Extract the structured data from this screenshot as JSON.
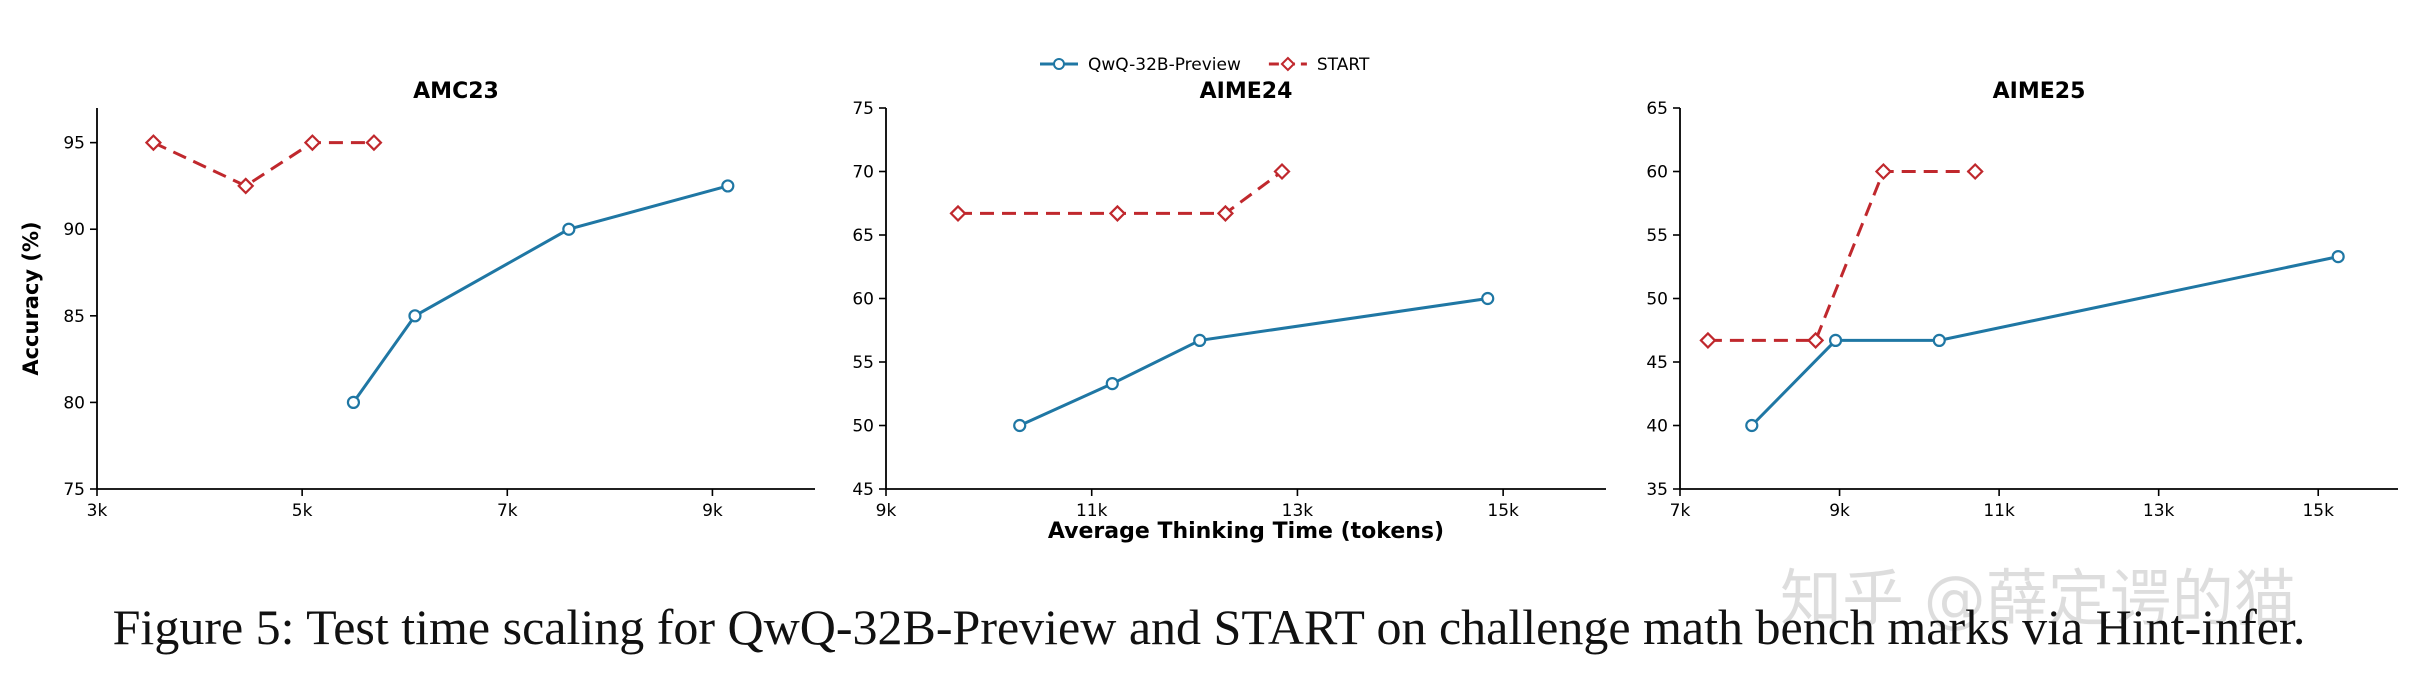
{
  "chart_data": [
    {
      "type": "line",
      "title": "AMC23",
      "xlabel": "",
      "ylabel": "Accuracy (%)",
      "xlim": [
        3000,
        10000
      ],
      "ylim": [
        75,
        97
      ],
      "xticks": [
        3000,
        5000,
        7000,
        9000
      ],
      "xtick_labels": [
        "3k",
        "5k",
        "7k",
        "9k"
      ],
      "yticks": [
        75,
        80,
        85,
        90,
        95
      ],
      "ytick_labels": [
        "75",
        "80",
        "85",
        "90",
        "95"
      ],
      "series": [
        {
          "name": "QwQ-32B-Preview",
          "x": [
            5500,
            6100,
            7600,
            9150
          ],
          "y": [
            80,
            85,
            90,
            92.5
          ]
        },
        {
          "name": "START",
          "x": [
            3550,
            4450,
            5100,
            5700
          ],
          "y": [
            95,
            92.5,
            95,
            95
          ]
        }
      ]
    },
    {
      "type": "line",
      "title": "AIME24",
      "xlabel": "Average Thinking Time (tokens)",
      "ylabel": "",
      "xlim": [
        9000,
        16000
      ],
      "ylim": [
        45,
        75
      ],
      "xticks": [
        9000,
        11000,
        13000,
        15000
      ],
      "xtick_labels": [
        "9k",
        "11k",
        "13k",
        "15k"
      ],
      "yticks": [
        45,
        50,
        55,
        60,
        65,
        70,
        75
      ],
      "ytick_labels": [
        "45",
        "50",
        "55",
        "60",
        "65",
        "70",
        "75"
      ],
      "series": [
        {
          "name": "QwQ-32B-Preview",
          "x": [
            10300,
            11200,
            12050,
            14850
          ],
          "y": [
            50,
            53.3,
            56.7,
            60
          ]
        },
        {
          "name": "START",
          "x": [
            9700,
            11250,
            12300,
            12850
          ],
          "y": [
            66.7,
            66.7,
            66.7,
            70
          ]
        }
      ]
    },
    {
      "type": "line",
      "title": "AIME25",
      "xlabel": "",
      "ylabel": "",
      "xlim": [
        7000,
        16000
      ],
      "ylim": [
        35,
        65
      ],
      "xticks": [
        7000,
        9000,
        11000,
        13000,
        15000
      ],
      "xtick_labels": [
        "7k",
        "9k",
        "11k",
        "13k",
        "15k"
      ],
      "yticks": [
        35,
        40,
        45,
        50,
        55,
        60,
        65
      ],
      "ytick_labels": [
        "35",
        "40",
        "45",
        "50",
        "55",
        "60",
        "65"
      ],
      "series": [
        {
          "name": "QwQ-32B-Preview",
          "x": [
            7900,
            8950,
            10250,
            15250
          ],
          "y": [
            40,
            46.7,
            46.7,
            53.3
          ]
        },
        {
          "name": "START",
          "x": [
            7350,
            8700,
            9550,
            10700
          ],
          "y": [
            46.7,
            46.7,
            60,
            60
          ]
        }
      ]
    }
  ],
  "legend": {
    "placement": "top-center",
    "entries": [
      {
        "name": "QwQ-32B-Preview",
        "color": "#1f77a4",
        "style": "solid",
        "marker": "circle"
      },
      {
        "name": "START",
        "color": "#c0282d",
        "style": "dashed",
        "marker": "diamond"
      }
    ]
  },
  "colors": {
    "qwq": "#1f77a4",
    "start": "#c0282d"
  },
  "caption": "Figure 5: Test time scaling for QwQ-32B-Preview and START on challenge math bench marks via Hint-infer.",
  "watermark": "知乎 @薛定谔的猫"
}
